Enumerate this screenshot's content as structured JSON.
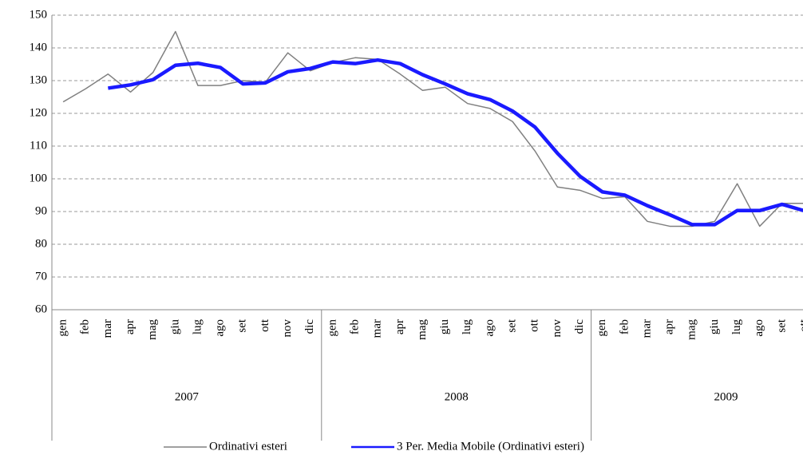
{
  "chart_data": {
    "type": "line",
    "categories": [
      "gen",
      "feb",
      "mar",
      "apr",
      "mag",
      "giu",
      "lug",
      "ago",
      "set",
      "ott",
      "nov",
      "dic",
      "gen",
      "feb",
      "mar",
      "apr",
      "mag",
      "giu",
      "lug",
      "ago",
      "set",
      "ott",
      "nov",
      "dic",
      "gen",
      "feb",
      "mar",
      "apr",
      "mag",
      "giu",
      "lug",
      "ago",
      "set",
      "ott"
    ],
    "category_groups": [
      {
        "label": "2007",
        "months": 12
      },
      {
        "label": "2008",
        "months": 12
      },
      {
        "label": "2009",
        "months": 10
      }
    ],
    "series": [
      {
        "name": "Ordinativi esteri",
        "color": "#808080",
        "width": 1.5,
        "values": [
          123.5,
          127.5,
          132,
          126.5,
          132.5,
          145,
          128.5,
          128.5,
          130,
          129.5,
          138.5,
          133,
          135.5,
          137,
          136.5,
          132,
          127,
          128,
          123,
          121.5,
          117.5,
          108.5,
          97.5,
          96.5,
          94,
          94.5,
          87,
          85.5,
          85.5,
          87,
          98.5,
          85.5,
          92.5,
          92.5
        ]
      },
      {
        "name": "3 Per. Media Mobile (Ordinativi esteri)",
        "color": "#1a1aff",
        "width": 4.5,
        "values": [
          null,
          null,
          127.7,
          128.7,
          130.3,
          134.7,
          135.3,
          134,
          129,
          129.3,
          132.7,
          133.7,
          135.7,
          135.2,
          136.3,
          135.2,
          131.8,
          129,
          126,
          124.2,
          120.7,
          115.8,
          107.8,
          100.8,
          96,
          95,
          91.8,
          89,
          86,
          86,
          90.3,
          90.3,
          92.2,
          90.2
        ]
      }
    ],
    "ylim": [
      60,
      150
    ],
    "yticks": [
      60,
      70,
      80,
      90,
      100,
      110,
      120,
      130,
      140,
      150
    ],
    "grid": true
  }
}
